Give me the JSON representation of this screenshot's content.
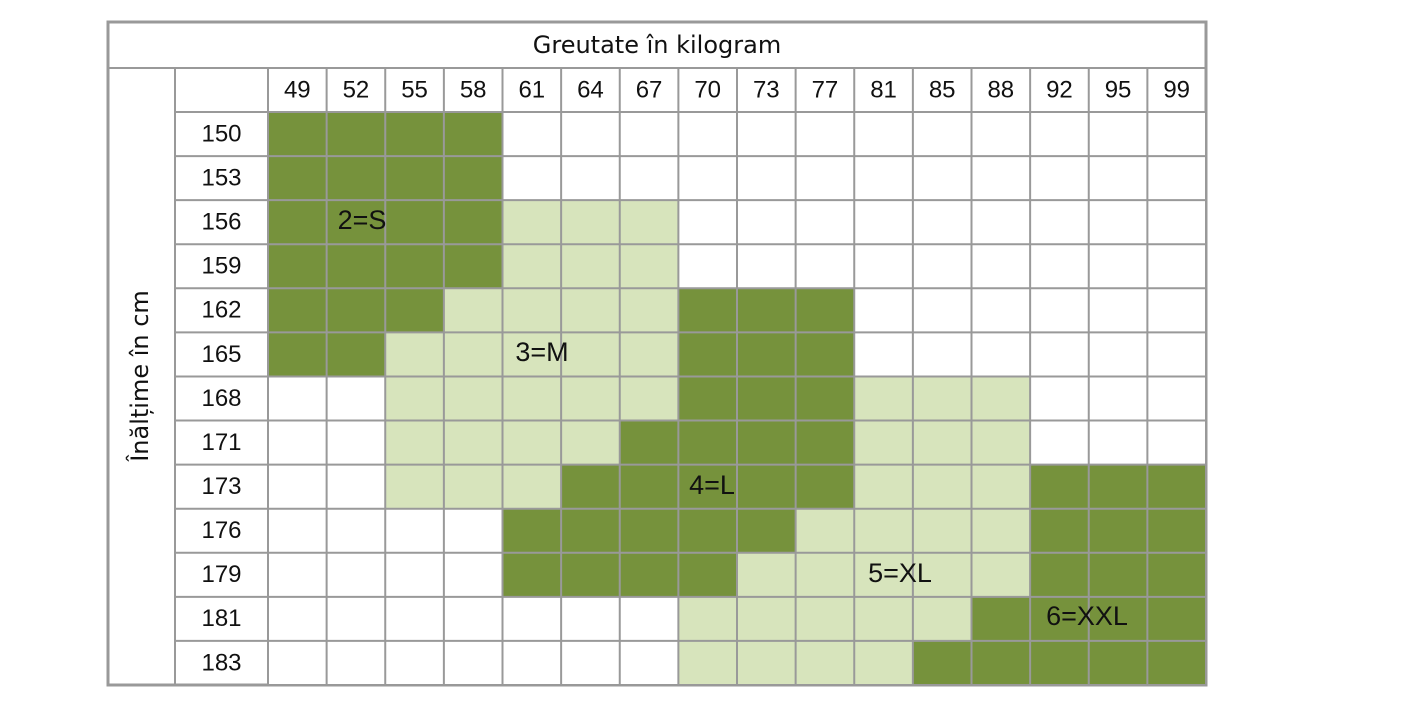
{
  "title": "Greutate în kilogram",
  "row_axis_label": "Înălțime în cm",
  "weights": [
    49,
    52,
    55,
    58,
    61,
    64,
    67,
    70,
    73,
    77,
    81,
    85,
    88,
    92,
    95,
    99
  ],
  "rows": [
    {
      "height": 150,
      "fills": [
        "#76923c",
        "#76923c",
        "#76923c",
        "#76923c",
        "#ffffff",
        "#ffffff",
        "#ffffff",
        "#ffffff",
        "#ffffff",
        "#ffffff",
        "#ffffff",
        "#ffffff",
        "#ffffff",
        "#ffffff",
        "#ffffff",
        "#ffffff"
      ]
    },
    {
      "height": 153,
      "fills": [
        "#76923c",
        "#76923c",
        "#76923c",
        "#76923c",
        "#ffffff",
        "#ffffff",
        "#ffffff",
        "#ffffff",
        "#ffffff",
        "#ffffff",
        "#ffffff",
        "#ffffff",
        "#ffffff",
        "#ffffff",
        "#ffffff",
        "#ffffff"
      ]
    },
    {
      "height": 156,
      "fills": [
        "#76923c",
        "#76923c",
        "#76923c",
        "#76923c",
        "#d7e4bc",
        "#d7e4bc",
        "#d7e4bc",
        "#ffffff",
        "#ffffff",
        "#ffffff",
        "#ffffff",
        "#ffffff",
        "#ffffff",
        "#ffffff",
        "#ffffff",
        "#ffffff"
      ]
    },
    {
      "height": 159,
      "fills": [
        "#76923c",
        "#76923c",
        "#76923c",
        "#76923c",
        "#d7e4bc",
        "#d7e4bc",
        "#d7e4bc",
        "#ffffff",
        "#ffffff",
        "#ffffff",
        "#ffffff",
        "#ffffff",
        "#ffffff",
        "#ffffff",
        "#ffffff",
        "#ffffff"
      ]
    },
    {
      "height": 162,
      "fills": [
        "#76923c",
        "#76923c",
        "#76923c",
        "#d7e4bc",
        "#d7e4bc",
        "#d7e4bc",
        "#d7e4bc",
        "#76923c",
        "#76923c",
        "#76923c",
        "#ffffff",
        "#ffffff",
        "#ffffff",
        "#ffffff",
        "#ffffff",
        "#ffffff"
      ]
    },
    {
      "height": 165,
      "fills": [
        "#76923c",
        "#76923c",
        "#d7e4bc",
        "#d7e4bc",
        "#d7e4bc",
        "#d7e4bc",
        "#d7e4bc",
        "#76923c",
        "#76923c",
        "#76923c",
        "#ffffff",
        "#ffffff",
        "#ffffff",
        "#ffffff",
        "#ffffff",
        "#ffffff"
      ]
    },
    {
      "height": 168,
      "fills": [
        "#ffffff",
        "#ffffff",
        "#d7e4bc",
        "#d7e4bc",
        "#d7e4bc",
        "#d7e4bc",
        "#d7e4bc",
        "#76923c",
        "#76923c",
        "#76923c",
        "#d7e4bc",
        "#d7e4bc",
        "#d7e4bc",
        "#ffffff",
        "#ffffff",
        "#ffffff"
      ]
    },
    {
      "height": 171,
      "fills": [
        "#ffffff",
        "#ffffff",
        "#d7e4bc",
        "#d7e4bc",
        "#d7e4bc",
        "#d7e4bc",
        "#76923c",
        "#76923c",
        "#76923c",
        "#76923c",
        "#d7e4bc",
        "#d7e4bc",
        "#d7e4bc",
        "#ffffff",
        "#ffffff",
        "#ffffff"
      ]
    },
    {
      "height": 173,
      "fills": [
        "#ffffff",
        "#ffffff",
        "#d7e4bc",
        "#d7e4bc",
        "#d7e4bc",
        "#76923c",
        "#76923c",
        "#76923c",
        "#76923c",
        "#76923c",
        "#d7e4bc",
        "#d7e4bc",
        "#d7e4bc",
        "#76923c",
        "#76923c",
        "#76923c"
      ]
    },
    {
      "height": 176,
      "fills": [
        "#ffffff",
        "#ffffff",
        "#ffffff",
        "#ffffff",
        "#76923c",
        "#76923c",
        "#76923c",
        "#76923c",
        "#76923c",
        "#d7e4bc",
        "#d7e4bc",
        "#d7e4bc",
        "#d7e4bc",
        "#76923c",
        "#76923c",
        "#76923c"
      ]
    },
    {
      "height": 179,
      "fills": [
        "#ffffff",
        "#ffffff",
        "#ffffff",
        "#ffffff",
        "#76923c",
        "#76923c",
        "#76923c",
        "#76923c",
        "#d7e4bc",
        "#d7e4bc",
        "#d7e4bc",
        "#d7e4bc",
        "#d7e4bc",
        "#76923c",
        "#76923c",
        "#76923c"
      ]
    },
    {
      "height": 181,
      "fills": [
        "#ffffff",
        "#ffffff",
        "#ffffff",
        "#ffffff",
        "#ffffff",
        "#ffffff",
        "#ffffff",
        "#d7e4bc",
        "#d7e4bc",
        "#d7e4bc",
        "#d7e4bc",
        "#d7e4bc",
        "#76923c",
        "#76923c",
        "#76923c",
        "#76923c"
      ]
    },
    {
      "height": 183,
      "fills": [
        "#ffffff",
        "#ffffff",
        "#ffffff",
        "#ffffff",
        "#ffffff",
        "#ffffff",
        "#ffffff",
        "#d7e4bc",
        "#d7e4bc",
        "#d7e4bc",
        "#d7e4bc",
        "#76923c",
        "#76923c",
        "#76923c",
        "#76923c",
        "#76923c"
      ]
    }
  ],
  "zone_labels": [
    "2=S",
    "3=M",
    "4=L",
    "5=XL",
    "6=XXL"
  ]
}
